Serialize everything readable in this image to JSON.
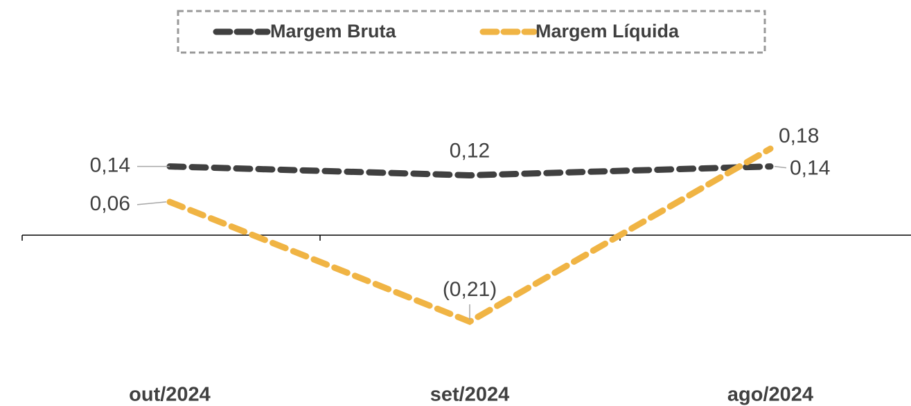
{
  "chart_data": {
    "type": "line",
    "categories": [
      "out/2024",
      "set/2024",
      "ago/2024"
    ],
    "series": [
      {
        "name": "Margem Bruta",
        "color": "#404040",
        "values": [
          0.14,
          0.12,
          0.14
        ],
        "value_labels": [
          "0,14",
          "0,12",
          "0,14"
        ]
      },
      {
        "name": "Margem Líquida",
        "color": "#f0b444",
        "values": [
          0.06,
          -0.21,
          0.18
        ],
        "value_labels": [
          "0,06",
          "(0,21)",
          "0,18"
        ]
      }
    ],
    "legend": "top"
  }
}
